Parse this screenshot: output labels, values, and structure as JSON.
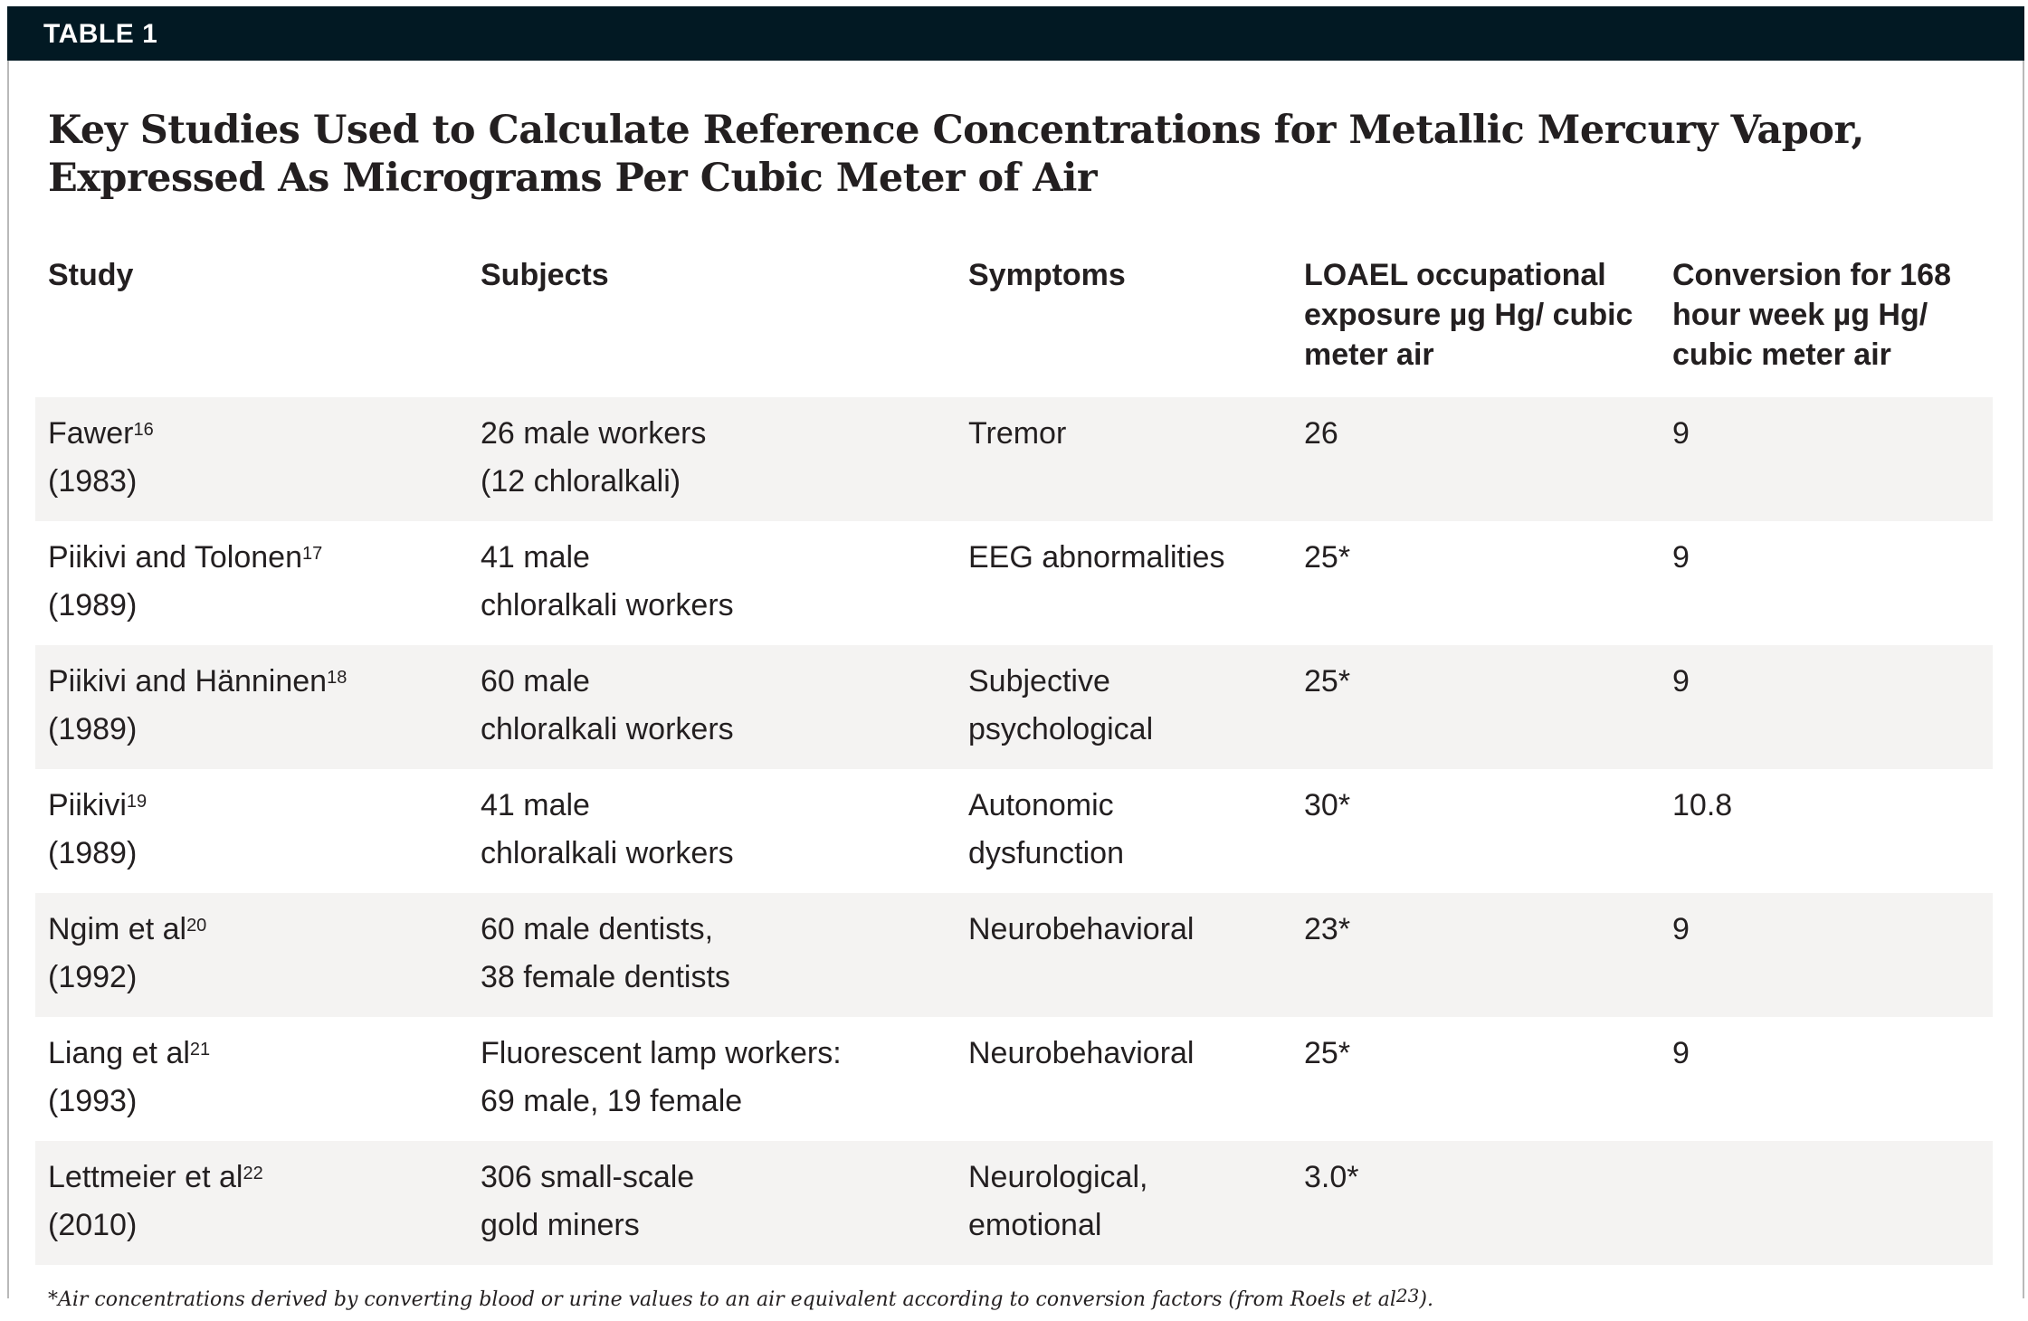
{
  "label": "TABLE 1",
  "title": "Key Studies Used to Calculate Reference Concentrations for Metallic Mercury Vapor, Expressed As Micrograms Per Cubic Meter of Air",
  "columns": [
    "Study",
    "Subjects",
    "Symptoms",
    "LOAEL occupational exposure µg Hg/ cubic meter air",
    "Conversion for 168 hour week µg Hg/ cubic meter air"
  ],
  "rows": [
    {
      "study": "Fawer",
      "ref": "16",
      "year": "(1983)",
      "subjects1": "26 male workers",
      "subjects2": "(12 chloralkali)",
      "symptoms1": "Tremor",
      "symptoms2": "",
      "loael": "26",
      "conversion": "9"
    },
    {
      "study": "Piikivi and Tolonen",
      "ref": "17",
      "year": "(1989)",
      "subjects1": "41 male",
      "subjects2": "chloralkali workers",
      "symptoms1": "EEG abnormalities",
      "symptoms2": "",
      "loael": "25*",
      "conversion": "9"
    },
    {
      "study": "Piikivi and  Hänninen",
      "ref": "18",
      "year": "(1989)",
      "subjects1": "60 male",
      "subjects2": "chloralkali workers",
      "symptoms1": "Subjective",
      "symptoms2": "psychological",
      "loael": "25*",
      "conversion": "9"
    },
    {
      "study": "Piikivi",
      "ref": "19",
      "year": "(1989)",
      "subjects1": "41 male",
      "subjects2": "chloralkali workers",
      "symptoms1": "Autonomic",
      "symptoms2": "dysfunction",
      "loael": "30*",
      "conversion": "10.8"
    },
    {
      "study": "Ngim et al",
      "ref": "20",
      "year": "(1992)",
      "subjects1": "60 male dentists,",
      "subjects2": "38 female dentists",
      "symptoms1": "Neurobehavioral",
      "symptoms2": "",
      "loael": "23*",
      "conversion": "9"
    },
    {
      "study": "Liang et al",
      "ref": "21",
      "year": "(1993)",
      "subjects1": "Fluorescent lamp workers:",
      "subjects2": "69 male, 19 female",
      "symptoms1": "Neurobehavioral",
      "symptoms2": "",
      "loael": "25*",
      "conversion": "9"
    },
    {
      "study": "Lettmeier et al",
      "ref": "22",
      "year": "(2010)",
      "subjects1": "306 small-scale",
      "subjects2": "gold miners",
      "symptoms1": "Neurological,",
      "symptoms2": "emotional",
      "loael": "3.0*",
      "conversion": ""
    }
  ],
  "footnote": {
    "text": "*Air concentrations derived by converting blood or urine values to an air equivalent according to conversion factors (from Roels et al",
    "ref": "23",
    "end": ")."
  },
  "colors": {
    "header_bar": "#021923",
    "row_shade": "#f4f3f2"
  }
}
